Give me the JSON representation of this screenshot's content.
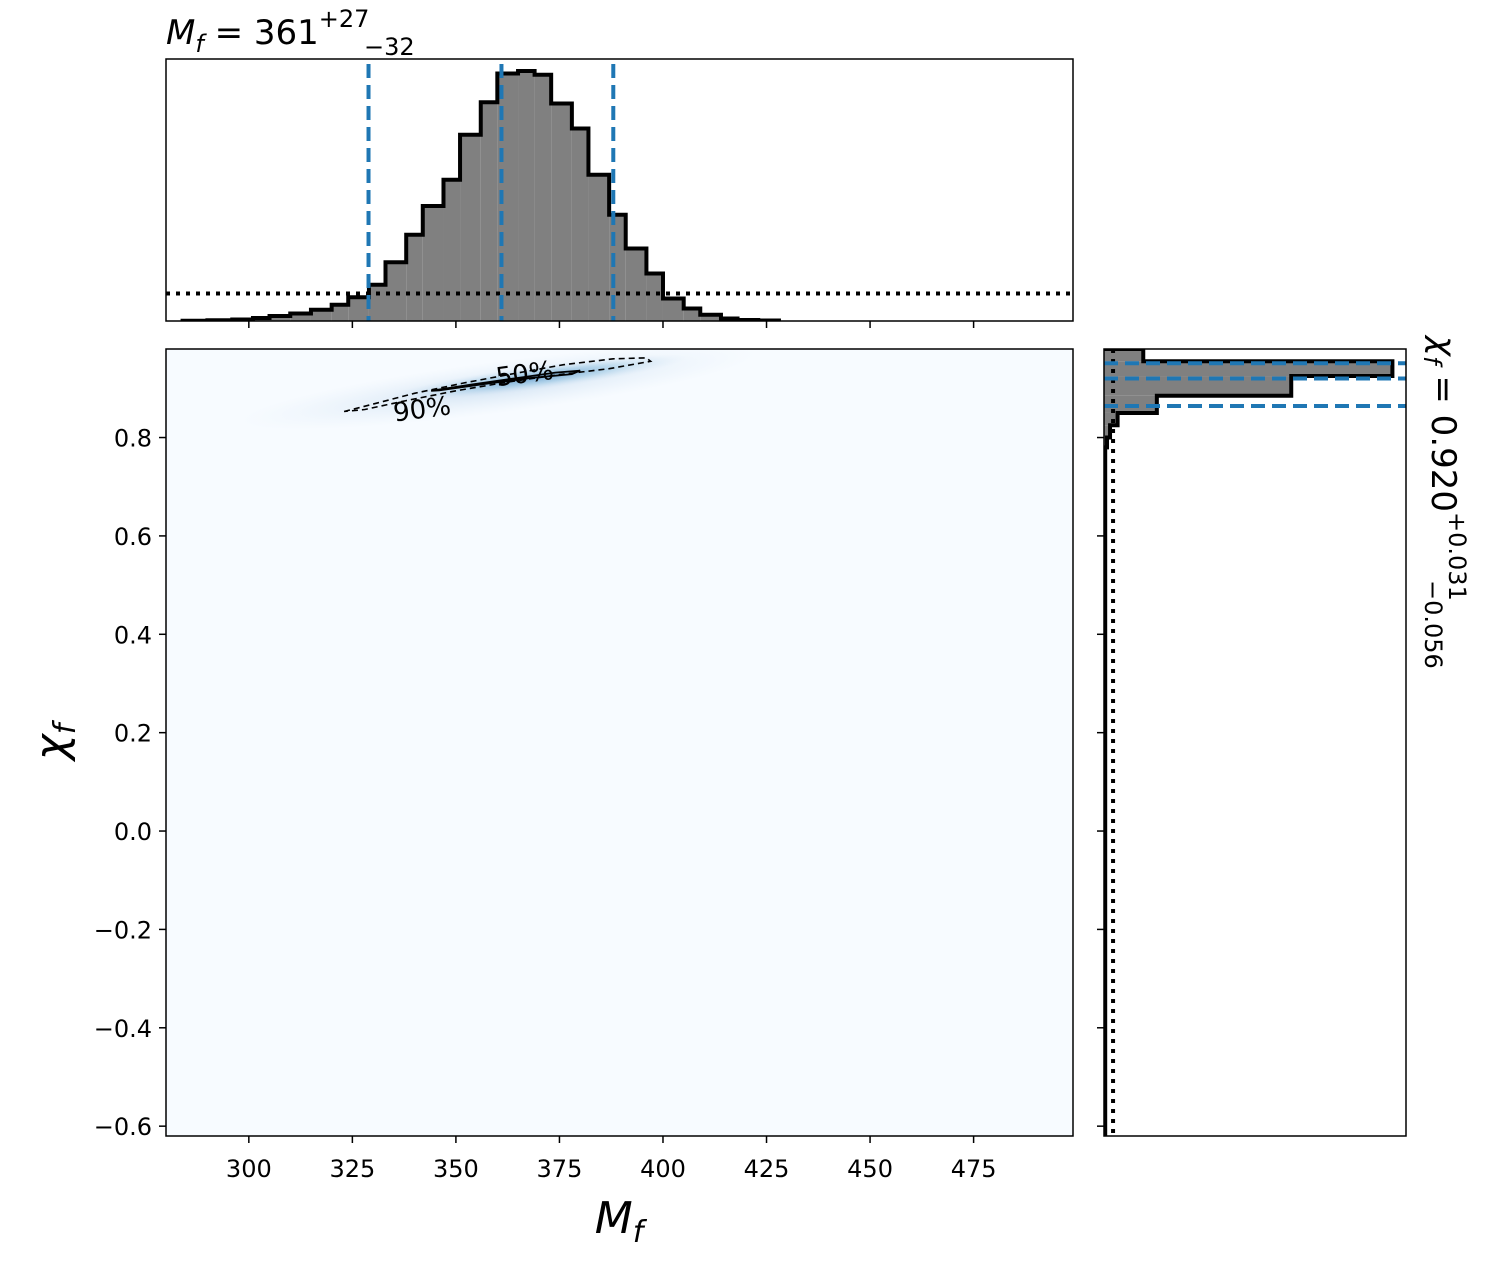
{
  "chart_data": [
    {
      "panel": "top-marginal",
      "type": "histogram",
      "title": {
        "base": "M",
        "sub": "f",
        "eq": " = 361",
        "plus": "+27",
        "minus": "−32"
      },
      "xlim": [
        280,
        499
      ],
      "x_ticks": [
        300,
        325,
        350,
        375,
        400,
        425,
        450,
        475
      ],
      "bins": [
        [
          284,
          290,
          0.001
        ],
        [
          290,
          296,
          0.003
        ],
        [
          296,
          301,
          0.006
        ],
        [
          301,
          305,
          0.012
        ],
        [
          305,
          310,
          0.02
        ],
        [
          310,
          315,
          0.03
        ],
        [
          315,
          320,
          0.045
        ],
        [
          320,
          324,
          0.065
        ],
        [
          324,
          329,
          0.095
        ],
        [
          329,
          333,
          0.145
        ],
        [
          333,
          338,
          0.235
        ],
        [
          338,
          342,
          0.345
        ],
        [
          342,
          347,
          0.46
        ],
        [
          347,
          351,
          0.565
        ],
        [
          351,
          356,
          0.745
        ],
        [
          356,
          360,
          0.875
        ],
        [
          360,
          365,
          0.99
        ],
        [
          365,
          369,
          1.0
        ],
        [
          369,
          373,
          0.985
        ],
        [
          373,
          378,
          0.87
        ],
        [
          378,
          382,
          0.77
        ],
        [
          382,
          387,
          0.585
        ],
        [
          387,
          391,
          0.425
        ],
        [
          391,
          396,
          0.29
        ],
        [
          396,
          400,
          0.19
        ],
        [
          400,
          405,
          0.09
        ],
        [
          405,
          409,
          0.05
        ],
        [
          409,
          414,
          0.025
        ],
        [
          414,
          418,
          0.01
        ],
        [
          418,
          423,
          0.004
        ],
        [
          423,
          428,
          0.002
        ]
      ],
      "prior_level": 0.11,
      "quantile_lines": [
        328.9,
        361,
        388
      ],
      "y_ticks": []
    },
    {
      "panel": "joint",
      "type": "heatmap",
      "xlabel": {
        "base": "M",
        "sub": "f"
      },
      "ylabel": {
        "base": "χ",
        "sub": "f"
      },
      "xlim": [
        280,
        499
      ],
      "ylim": [
        -0.62,
        0.98
      ],
      "x_ticks": [
        300,
        325,
        350,
        375,
        400,
        425,
        450,
        475
      ],
      "y_ticks": [
        {
          "v": 0.8,
          "label": "0.8"
        },
        {
          "v": 0.6,
          "label": "0.6"
        },
        {
          "v": 0.4,
          "label": "0.4"
        },
        {
          "v": 0.2,
          "label": "0.2"
        },
        {
          "v": 0.0,
          "label": "0.0"
        },
        {
          "v": -0.2,
          "label": "−0.2"
        },
        {
          "v": -0.4,
          "label": "−0.4"
        },
        {
          "v": -0.6,
          "label": "−0.6"
        }
      ],
      "contour_90": [
        [
          323,
          0.853
        ],
        [
          330,
          0.868
        ],
        [
          340,
          0.89
        ],
        [
          352,
          0.911
        ],
        [
          364,
          0.93
        ],
        [
          376,
          0.948
        ],
        [
          388,
          0.96
        ],
        [
          396,
          0.962
        ],
        [
          397,
          0.955
        ],
        [
          387,
          0.94
        ],
        [
          375,
          0.928
        ],
        [
          362,
          0.912
        ],
        [
          350,
          0.895
        ],
        [
          338,
          0.875
        ],
        [
          328,
          0.857
        ],
        [
          323,
          0.853
        ]
      ],
      "contour_50": [
        [
          344,
          0.895
        ],
        [
          354,
          0.908
        ],
        [
          364,
          0.92
        ],
        [
          374,
          0.932
        ],
        [
          380,
          0.936
        ],
        [
          378,
          0.929
        ],
        [
          368,
          0.921
        ],
        [
          358,
          0.91
        ],
        [
          346,
          0.896
        ],
        [
          344,
          0.895
        ]
      ],
      "contour_labels": [
        {
          "text": "50%",
          "x": 366.6,
          "y": 0.93
        },
        {
          "text": "90%",
          "x": 341.8,
          "y": 0.858
        }
      ],
      "density_core": {
        "x": [
          345,
          395
        ],
        "y": [
          0.895,
          0.95
        ]
      }
    },
    {
      "panel": "right-marginal",
      "type": "histogram",
      "orientation": "horizontal",
      "title": {
        "base": "χ",
        "sub": "f",
        "eq": " = 0.920",
        "plus": "+0.031",
        "minus": "−0.056"
      },
      "ylim": [
        -0.62,
        0.98
      ],
      "bins": [
        [
          0.955,
          0.98,
          0.13
        ],
        [
          0.925,
          0.955,
          0.955
        ],
        [
          0.885,
          0.925,
          0.62
        ],
        [
          0.85,
          0.885,
          0.175
        ],
        [
          0.825,
          0.85,
          0.045
        ],
        [
          0.8,
          0.825,
          0.02
        ],
        [
          0.78,
          0.8,
          0.01
        ],
        [
          -0.62,
          0.78,
          0.004
        ]
      ],
      "prior_level": 0.03,
      "quantile_lines": [
        0.951,
        0.92,
        0.864
      ]
    }
  ]
}
